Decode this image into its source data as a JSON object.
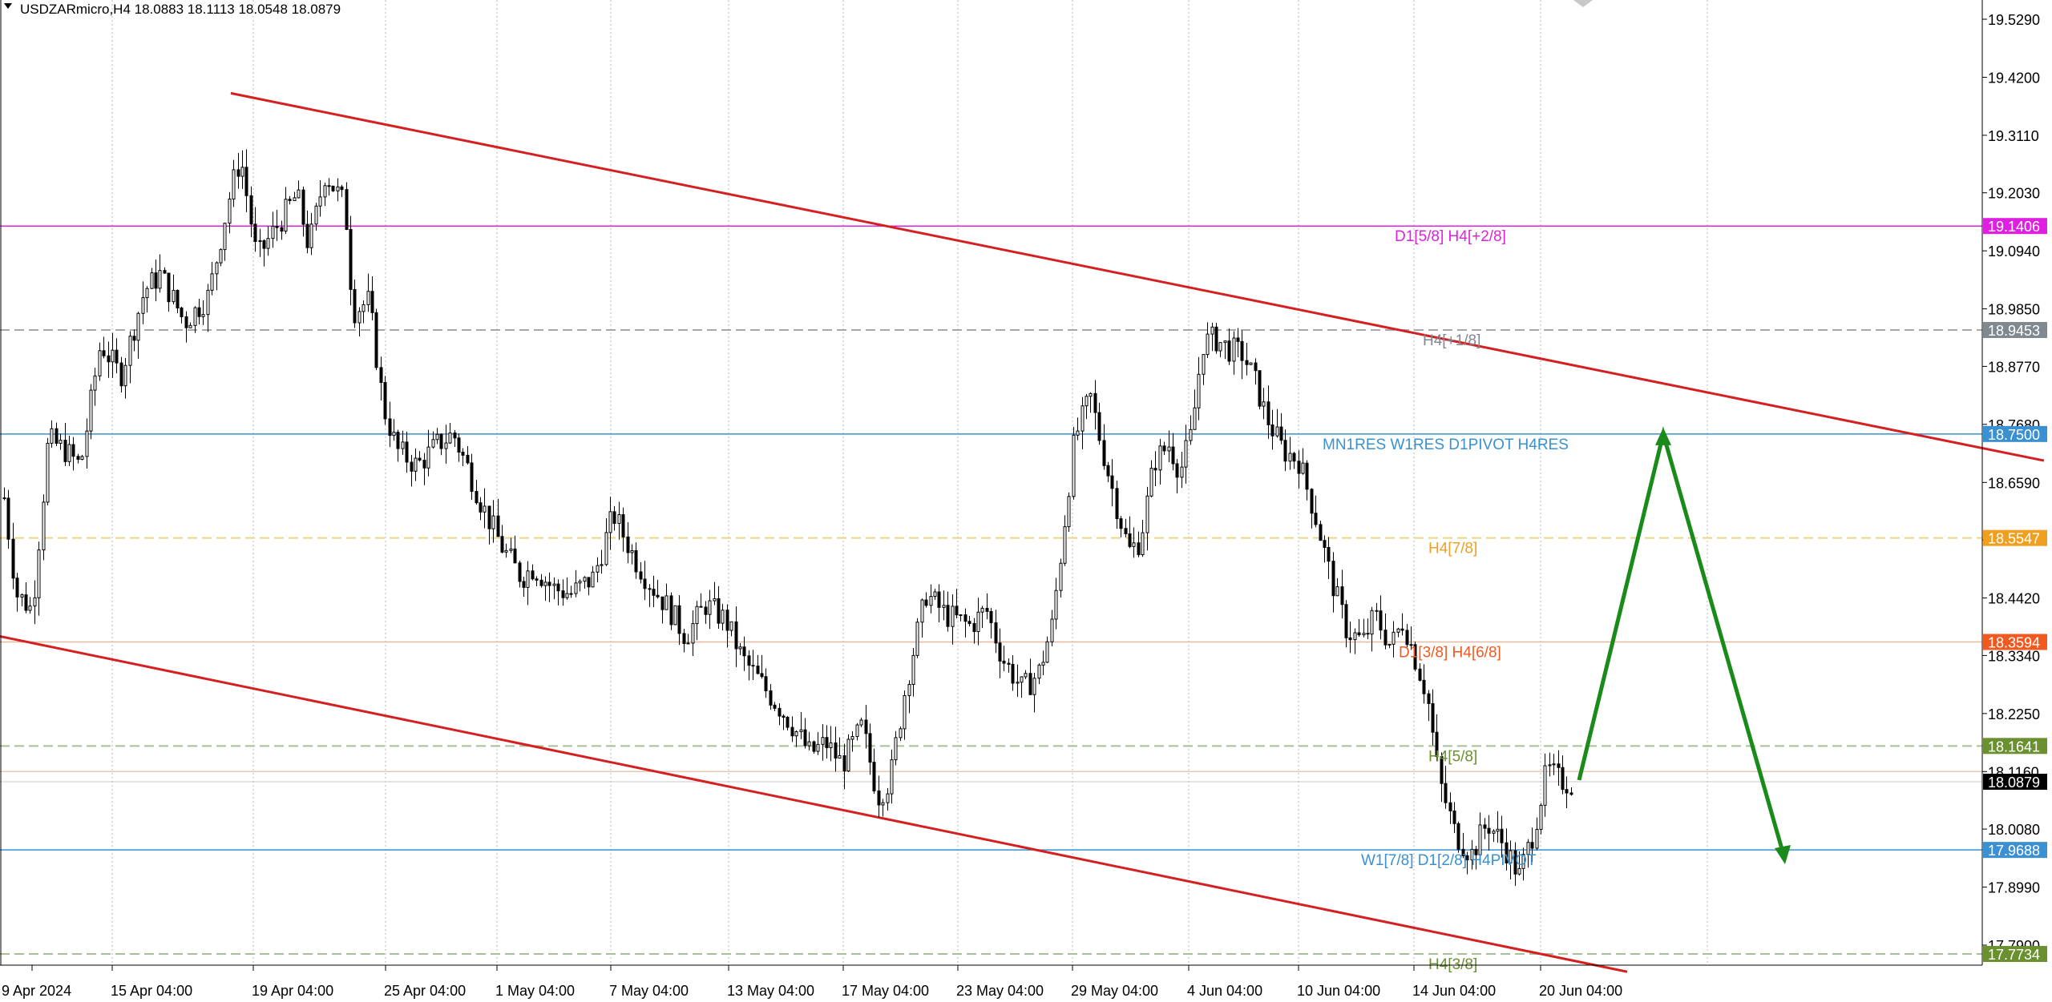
{
  "header": {
    "symbol_line": "USDZARmicro,H4  18.0883 18.1113 18.0548 18.0879"
  },
  "colors": {
    "channel": "#d42020",
    "arrow": "#1a8a1a",
    "candle": "#000000",
    "grid": "#b8b8b8"
  },
  "chart_data": {
    "type": "candlestick",
    "ylim": [
      17.74,
      19.57
    ],
    "y_ticks": [
      "19.5290",
      "19.4200",
      "19.3110",
      "19.2030",
      "19.0940",
      "18.9850",
      "18.8770",
      "18.7680",
      "18.6590",
      "18.5510",
      "18.4420",
      "18.3340",
      "18.2250",
      "18.1160",
      "18.0080",
      "17.8990",
      "17.7900"
    ],
    "x_ticks": [
      "9 Apr 2024",
      "15 Apr 04:00",
      "19 Apr 04:00",
      "25 Apr 04:00",
      "1 May 04:00",
      "7 May 04:00",
      "13 May 04:00",
      "17 May 04:00",
      "23 May 04:00",
      "29 May 04:00",
      "4 Jun 04:00",
      "10 Jun 04:00",
      "14 Jun 04:00",
      "20 Jun 04:00"
    ],
    "levels": [
      {
        "price": 19.1406,
        "label": "D1[5/8] H4[+2/8]",
        "badge": "19.1406",
        "color": "#e020e0",
        "badge_color": "#e020e0",
        "style": "solid",
        "label_pos": 1740
      },
      {
        "price": 18.9453,
        "label": "H4[+1/8]",
        "badge": "18.9453",
        "color": "#a8a8a8",
        "badge_color": "#808890",
        "style": "dashed",
        "label_pos": 1775
      },
      {
        "price": 18.75,
        "label": "MN1RES W1RES D1PIVOT H4RES",
        "badge": "18.7500",
        "color": "#3a90d0",
        "badge_color": "#3a90d0",
        "style": "solid",
        "label_pos": 1650
      },
      {
        "price": 18.5547,
        "label": "H4[7/8]",
        "badge": "18.5547",
        "color": "#e8d888",
        "badge_color": "#f0a020",
        "style": "dashed",
        "label_pos": 1782
      },
      {
        "price": 18.3594,
        "label": "D1[3/8] H4[6/8]",
        "badge": "18.3594",
        "color": "#e8b8a0",
        "badge_color": "#f05a20",
        "style": "solid",
        "label_pos": 1745
      },
      {
        "price": 18.1641,
        "label": "H4[5/8]",
        "badge": "18.1641",
        "color": "#a8c098",
        "badge_color": "#6a9030",
        "style": "dashed",
        "label_pos": 1782
      },
      {
        "price": 18.116,
        "label": "",
        "badge": "",
        "color": "#e8c8b0",
        "badge_color": "",
        "style": "solid",
        "label_pos": 0
      },
      {
        "price": 17.9688,
        "label": "W1[7/8] D1[2/8] H4PIVOT",
        "badge": "17.9688",
        "color": "#3a90d0",
        "badge_color": "#3a90d0",
        "style": "solid",
        "label_pos": 1698
      },
      {
        "price": 17.7734,
        "label": "H4[3/8]",
        "badge": "17.7734",
        "color": "#a8c098",
        "badge_color": "#6a9030",
        "style": "dashed",
        "label_pos": 1782
      }
    ],
    "current_price": "18.0879",
    "channel": {
      "upper": [
        [
          288,
          19.39
        ],
        [
          2550,
          18.7
        ]
      ],
      "lower": [
        [
          0,
          18.37
        ],
        [
          2030,
          17.74
        ]
      ]
    },
    "forecast_path": [
      [
        1970,
        18.1
      ],
      [
        2075,
        18.75
      ],
      [
        2225,
        17.96
      ]
    ],
    "waypoints": [
      [
        5,
        18.63
      ],
      [
        20,
        18.45
      ],
      [
        40,
        18.42
      ],
      [
        60,
        18.74
      ],
      [
        80,
        18.72
      ],
      [
        100,
        18.69
      ],
      [
        125,
        18.92
      ],
      [
        150,
        18.86
      ],
      [
        180,
        19.02
      ],
      [
        200,
        19.05
      ],
      [
        230,
        18.96
      ],
      [
        260,
        19.01
      ],
      [
        288,
        19.21
      ],
      [
        300,
        19.27
      ],
      [
        320,
        19.08
      ],
      [
        345,
        19.14
      ],
      [
        370,
        19.2
      ],
      [
        385,
        19.1
      ],
      [
        405,
        19.24
      ],
      [
        430,
        19.18
      ],
      [
        440,
        18.98
      ],
      [
        460,
        19.0
      ],
      [
        478,
        18.8
      ],
      [
        495,
        18.72
      ],
      [
        520,
        18.69
      ],
      [
        545,
        18.73
      ],
      [
        565,
        18.75
      ],
      [
        585,
        18.68
      ],
      [
        600,
        18.62
      ],
      [
        625,
        18.54
      ],
      [
        650,
        18.48
      ],
      [
        665,
        18.5
      ],
      [
        690,
        18.46
      ],
      [
        712,
        18.45
      ],
      [
        740,
        18.48
      ],
      [
        765,
        18.6
      ],
      [
        790,
        18.52
      ],
      [
        810,
        18.47
      ],
      [
        835,
        18.42
      ],
      [
        855,
        18.37
      ],
      [
        880,
        18.43
      ],
      [
        905,
        18.4
      ],
      [
        925,
        18.33
      ],
      [
        955,
        18.27
      ],
      [
        985,
        18.21
      ],
      [
        1010,
        18.15
      ],
      [
        1030,
        18.17
      ],
      [
        1050,
        18.13
      ],
      [
        1075,
        18.2
      ],
      [
        1095,
        18.07
      ],
      [
        1110,
        18.1
      ],
      [
        1130,
        18.28
      ],
      [
        1155,
        18.45
      ],
      [
        1180,
        18.41
      ],
      [
        1210,
        18.39
      ],
      [
        1230,
        18.42
      ],
      [
        1250,
        18.33
      ],
      [
        1275,
        18.27
      ],
      [
        1295,
        18.3
      ],
      [
        1312,
        18.39
      ],
      [
        1325,
        18.55
      ],
      [
        1340,
        18.74
      ],
      [
        1360,
        18.82
      ],
      [
        1375,
        18.72
      ],
      [
        1392,
        18.62
      ],
      [
        1408,
        18.53
      ],
      [
        1422,
        18.55
      ],
      [
        1440,
        18.7
      ],
      [
        1458,
        18.73
      ],
      [
        1472,
        18.68
      ],
      [
        1486,
        18.75
      ],
      [
        1500,
        18.92
      ],
      [
        1515,
        18.93
      ],
      [
        1532,
        18.91
      ],
      [
        1550,
        18.9
      ],
      [
        1565,
        18.85
      ],
      [
        1580,
        18.78
      ],
      [
        1600,
        18.72
      ],
      [
        1620,
        18.7
      ],
      [
        1640,
        18.6
      ],
      [
        1660,
        18.48
      ],
      [
        1680,
        18.38
      ],
      [
        1700,
        18.36
      ],
      [
        1715,
        18.41
      ],
      [
        1735,
        18.35
      ],
      [
        1750,
        18.4
      ],
      [
        1765,
        18.33
      ],
      [
        1780,
        18.26
      ],
      [
        1795,
        18.1
      ],
      [
        1815,
        18.0
      ],
      [
        1835,
        17.96
      ],
      [
        1855,
        18.02
      ],
      [
        1875,
        17.98
      ],
      [
        1895,
        17.92
      ],
      [
        1912,
        18.0
      ],
      [
        1930,
        18.12
      ],
      [
        1945,
        18.1
      ],
      [
        1965,
        18.09
      ]
    ]
  }
}
